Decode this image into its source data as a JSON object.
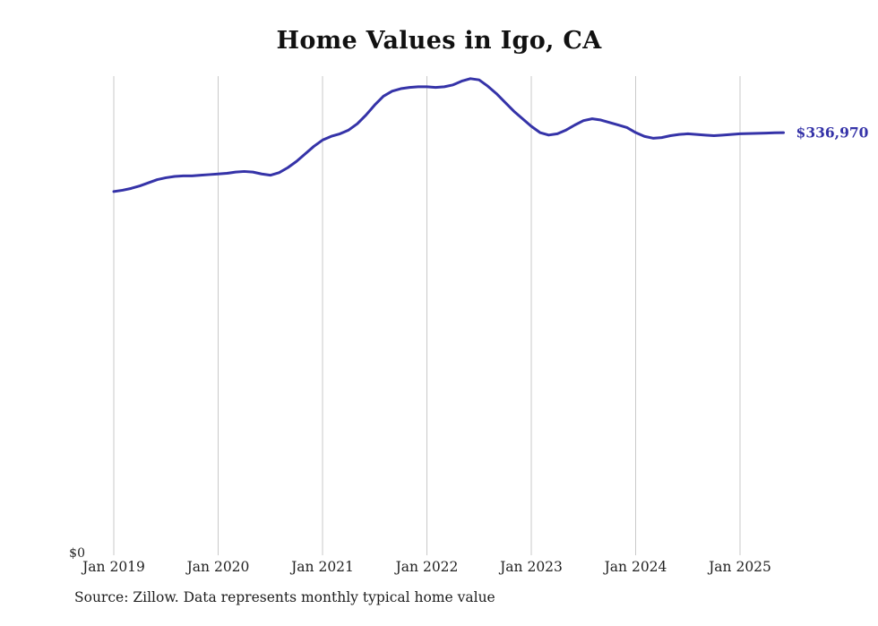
{
  "chart_data": {
    "type": "line",
    "title": "Home Values in Igo, CA",
    "series_name": "Monthly typical home value",
    "x_tick_labels": [
      "Jan 2019",
      "Jan 2020",
      "Jan 2021",
      "Jan 2022",
      "Jan 2023",
      "Jan 2024",
      "Jan 2025"
    ],
    "y_tick_label": "$0",
    "ylim": [
      0,
      382000
    ],
    "grid": "vertical-only",
    "legend": "none",
    "end_label": "$336,970",
    "line_color": "#3533a8",
    "gridline_color": "#c9c9c9",
    "months": [
      "2019-01",
      "2019-02",
      "2019-03",
      "2019-04",
      "2019-05",
      "2019-06",
      "2019-07",
      "2019-08",
      "2019-09",
      "2019-10",
      "2019-11",
      "2019-12",
      "2020-01",
      "2020-02",
      "2020-03",
      "2020-04",
      "2020-05",
      "2020-06",
      "2020-07",
      "2020-08",
      "2020-09",
      "2020-10",
      "2020-11",
      "2020-12",
      "2021-01",
      "2021-02",
      "2021-03",
      "2021-04",
      "2021-05",
      "2021-06",
      "2021-07",
      "2021-08",
      "2021-09",
      "2021-10",
      "2021-11",
      "2021-12",
      "2022-01",
      "2022-02",
      "2022-03",
      "2022-04",
      "2022-05",
      "2022-06",
      "2022-07",
      "2022-08",
      "2022-09",
      "2022-10",
      "2022-11",
      "2022-12",
      "2023-01",
      "2023-02",
      "2023-03",
      "2023-04",
      "2023-05",
      "2023-06",
      "2023-07",
      "2023-08",
      "2023-09",
      "2023-10",
      "2023-11",
      "2023-12",
      "2024-01",
      "2024-02",
      "2024-03",
      "2024-04",
      "2024-05",
      "2024-06",
      "2024-07",
      "2024-08",
      "2024-09",
      "2024-10",
      "2024-11",
      "2024-12",
      "2025-01",
      "2025-02",
      "2025-03",
      "2025-04",
      "2025-05",
      "2025-06"
    ],
    "values": [
      290000,
      291000,
      292500,
      294500,
      297000,
      299500,
      301000,
      302000,
      302500,
      302500,
      303000,
      303500,
      304000,
      304500,
      305500,
      306000,
      305500,
      304000,
      303000,
      305000,
      309000,
      314000,
      320000,
      326000,
      331000,
      334000,
      336000,
      339000,
      344000,
      351000,
      359000,
      366000,
      370000,
      372000,
      373000,
      373500,
      373500,
      373000,
      373500,
      375000,
      378000,
      380000,
      379000,
      374000,
      368000,
      361000,
      354000,
      348000,
      342000,
      337000,
      335000,
      336000,
      339000,
      343000,
      346500,
      348000,
      347000,
      345000,
      343000,
      341000,
      337000,
      334000,
      332500,
      333000,
      334500,
      335500,
      336000,
      335500,
      335000,
      334500,
      335000,
      335500,
      336000,
      336200,
      336400,
      336600,
      336800,
      336970
    ]
  },
  "source_note": "Source: Zillow. Data represents monthly typical home value"
}
